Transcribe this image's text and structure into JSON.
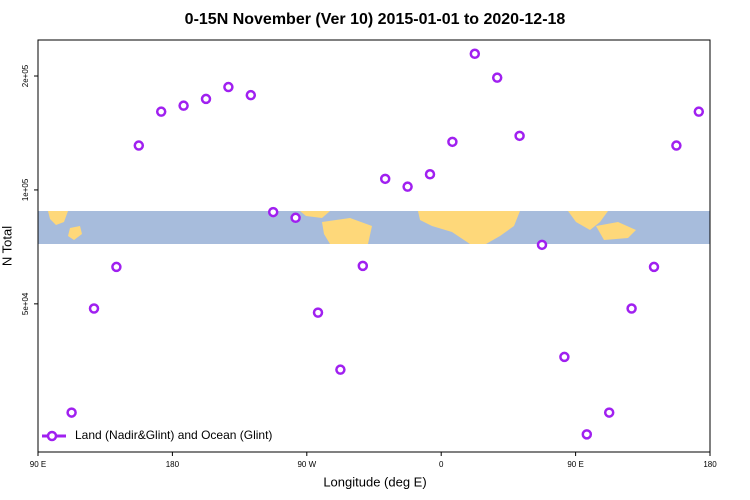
{
  "chart_data": {
    "type": "scatter",
    "title": "0-15N November (Ver 10)   2015-01-01 to 2020-12-18",
    "x_label": "Longitude (deg E)",
    "y_label": "N Total",
    "log_y": true,
    "xlim": [
      90,
      540
    ],
    "xticks": [
      {
        "value": 90,
        "label": "90 E"
      },
      {
        "value": 180,
        "label": "180"
      },
      {
        "value": 270,
        "label": "90 W"
      },
      {
        "value": 360,
        "label": "0"
      },
      {
        "value": 450,
        "label": "90 E"
      },
      {
        "value": 540,
        "label": "180"
      }
    ],
    "ylim": [
      20300,
      249000
    ],
    "yticks": [
      {
        "value": 50000,
        "label": "5e+04"
      },
      {
        "value": 100000,
        "label": "1e+05"
      },
      {
        "value": 200000,
        "label": "2e+05"
      }
    ],
    "legend_position": "bottom-left",
    "series": [
      {
        "name": "Land (Nadir&Glint) and Ocean (Glint)",
        "color": "#a020f0",
        "x": [
          112.5,
          127.5,
          142.5,
          157.5,
          172.5,
          187.5,
          202.5,
          217.5,
          232.5,
          247.5,
          262.5,
          277.5,
          292.5,
          307.5,
          322.5,
          337.5,
          352.5,
          367.5,
          382.5,
          397.5,
          412.5,
          427.5,
          442.5,
          457.5,
          472.5,
          487.5,
          502.5,
          517.5,
          532.5
        ],
        "values": [
          25800,
          48600,
          62600,
          131000,
          161000,
          167000,
          174000,
          187000,
          178000,
          87400,
          84400,
          47400,
          33500,
          63000,
          107000,
          102000,
          110000,
          134000,
          229000,
          198000,
          139000,
          71600,
          36200,
          22600,
          25800,
          48600,
          62600,
          131000,
          161000
        ]
      }
    ]
  }
}
